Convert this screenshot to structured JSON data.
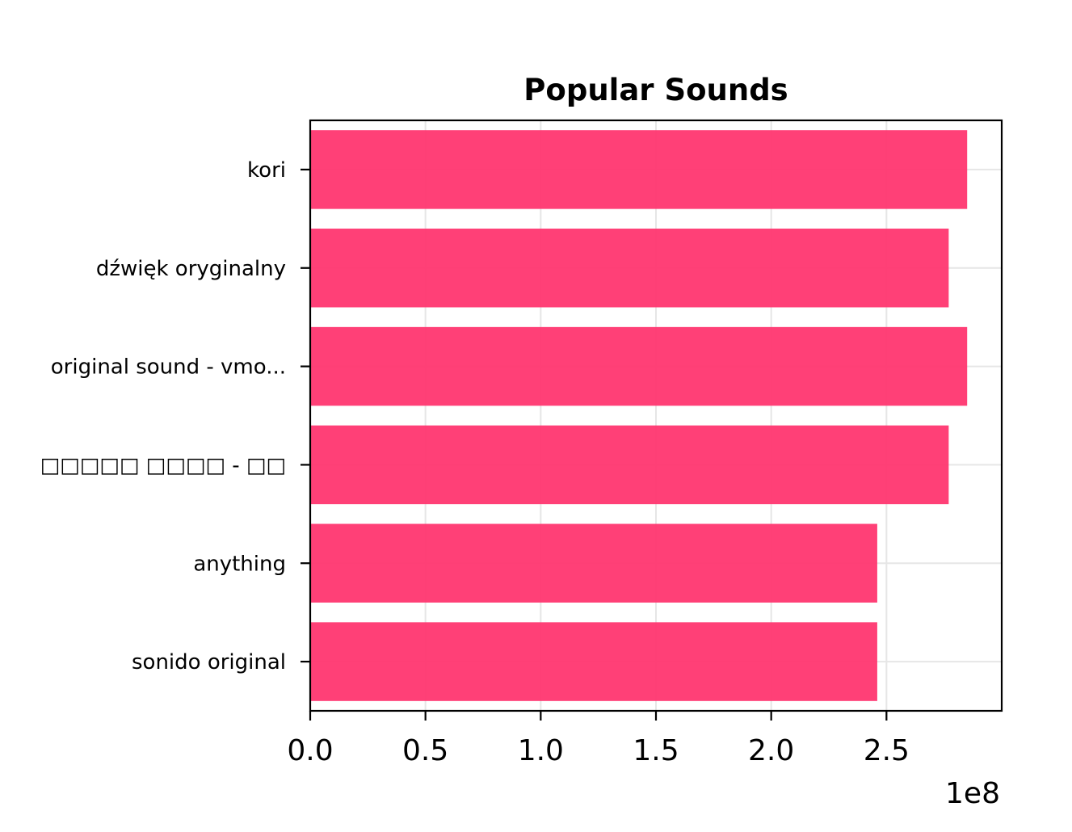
{
  "chart_data": {
    "type": "bar",
    "orientation": "horizontal",
    "title": "Popular Sounds",
    "categories": [
      "kori",
      "dźwięk oryginalny",
      "original sound - vmo...",
      "□□□□□ □□□□ - □□",
      "anything",
      "sonido original"
    ],
    "values": [
      285000000,
      277000000,
      285000000,
      277000000,
      246000000,
      246000000
    ],
    "xlim": [
      0,
      300000000
    ],
    "x_ticks": [
      0,
      50000000,
      100000000,
      150000000,
      200000000,
      250000000
    ],
    "x_tick_labels": [
      "0.0",
      "0.5",
      "1.0",
      "1.5",
      "2.0",
      "2.5"
    ],
    "x_offset_label": "1e8",
    "grid": true,
    "bar_color": "#ff3670",
    "grid_color": "#e6e6e6"
  }
}
